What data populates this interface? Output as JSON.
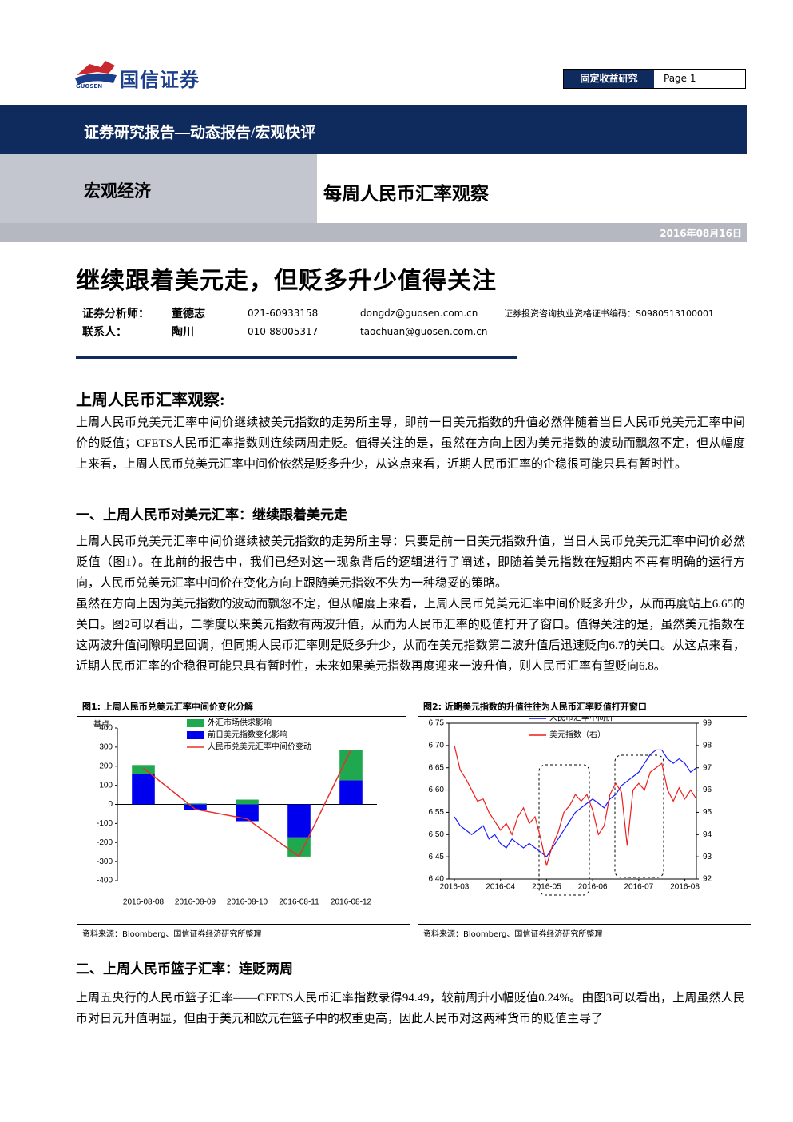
{
  "header": {
    "logo": "国信证券",
    "logo_en": "GUOSEN",
    "tag": "固定收益研究",
    "page": "Page 1"
  },
  "banner": "证券研究报告—动态报告/宏观快评",
  "category": "宏观经济",
  "report_title": "每周人民币汇率观察",
  "date": "2016年08月16日",
  "headline": "继续跟着美元走，但贬多升少值得关注",
  "analysts": [
    {
      "role": "证券分析师：",
      "name": "董德志",
      "phone": "021-60933158",
      "email": "dongdz@guosen.com.cn",
      "cert": "证券投资咨询执业资格证书编码：S0980513100001"
    },
    {
      "role": "联系人：",
      "name": "陶川",
      "phone": "010-88005317",
      "email": "taochuan@guosen.com.cn"
    }
  ],
  "sections": [
    {
      "heading": "上周人民币汇率观察:",
      "paragraphs": [
        "上周人民币兑美元汇率中间价继续被美元指数的走势所主导，即前一日美元指数的升值必然伴随着当日人民币兑美元汇率中间价的贬值；CFETS人民币汇率指数则连续两周走贬。值得关注的是，虽然在方向上因为美元指数的波动而飘忽不定，但从幅度上来看，上周人民币兑美元汇率中间价依然是贬多升少，从这点来看，近期人民币汇率的企稳很可能只具有暂时性。"
      ]
    },
    {
      "heading": "一、上周人民币对美元汇率：继续跟着美元走",
      "paragraphs": [
        "上周人民币兑美元汇率中间价继续被美元指数的走势所主导：只要是前一日美元指数升值，当日人民币兑美元汇率中间价必然贬值（图1）。在此前的报告中，我们已经对这一现象背后的逻辑进行了阐述，即随着美元指数在短期内不再有明确的运行方向，人民币兑美元汇率中间价在变化方向上跟随美元指数不失为一种稳妥的策略。",
        "虽然在方向上因为美元指数的波动而飘忽不定，但从幅度上来看，上周人民币兑美元汇率中间价贬多升少，从而再度站上6.65的关口。图2可以看出，二季度以来美元指数有两波升值，从而为人民币汇率的贬值打开了窗口。值得关注的是，虽然美元指数在这两波升值间隙明显回调，但同期人民币汇率则是贬多升少，从而在美元指数第二波升值后迅速贬向6.7的关口。从这点来看，近期人民币汇率的企稳很可能只具有暂时性，未来如果美元指数再度迎来一波升值，则人民币汇率有望贬向6.8。"
      ]
    },
    {
      "heading": "二、上周人民币篮子汇率：连贬两周",
      "paragraphs": [
        "上周五央行的人民币篮子汇率——CFETS人民币汇率指数录得94.49，较前周升小幅贬值0.24%。由图3可以看出，上周虽然人民币对日元升值明显，但由于美元和欧元在篮子中的权重更高，因此人民币对这两种货币的贬值主导了"
      ]
    }
  ],
  "chart_data": [
    {
      "type": "bar",
      "title": "图1: 上周人民币兑美元汇率中间价变化分解",
      "source": "资料来源：Bloomberg、国信证券经济研究所整理",
      "y_label": "基点",
      "stacked": true,
      "legend": "upper left",
      "categories": [
        "2016-08-08",
        "2016-08-09",
        "2016-08-10",
        "2016-08-11",
        "2016-08-12"
      ],
      "series": [
        {
          "name": "外汇市场供求影响",
          "color": "#1fa84f",
          "values": [
            46,
            5,
            25,
            -101,
            160
          ]
        },
        {
          "name": "前日美元指数变化影响",
          "color": "#0000ee",
          "values": [
            160,
            -30,
            -88,
            -173,
            126
          ]
        },
        {
          "name": "人民币兑美元汇率中间价变动",
          "color": "#e8302a",
          "type": "line",
          "values": [
            190,
            -25,
            -76,
            -274,
            286
          ]
        }
      ],
      "ylim": [
        -400,
        400
      ],
      "yticks": [
        -400,
        -300,
        -200,
        -100,
        0,
        100,
        200,
        300,
        400
      ],
      "grid": false
    },
    {
      "type": "line",
      "title": "图2: 近期美元指数的升值往往为人民币汇率贬值打开窗口",
      "source": "资料来源：Bloomberg、国信证券经济研究所整理",
      "legend": "upper center",
      "categories": [
        "2016-03",
        null,
        null,
        null,
        null,
        null,
        null,
        null,
        "2016-04",
        null,
        null,
        null,
        null,
        null,
        null,
        null,
        "2016-05",
        null,
        null,
        null,
        null,
        null,
        null,
        null,
        "2016-06",
        null,
        null,
        null,
        null,
        null,
        null,
        null,
        "2016-07",
        null,
        null,
        null,
        null,
        null,
        null,
        null,
        "2016-08",
        null,
        null
      ],
      "series": [
        {
          "name": "人民币汇率中间价",
          "color": "#1a1aff",
          "values": [
            6.54,
            6.52,
            6.51,
            6.5,
            6.51,
            6.52,
            6.49,
            6.5,
            6.48,
            6.47,
            6.49,
            6.48,
            6.47,
            6.48,
            6.47,
            6.46,
            6.45,
            6.47,
            6.49,
            6.51,
            6.53,
            6.55,
            6.56,
            6.57,
            6.58,
            6.57,
            6.56,
            6.58,
            6.59,
            6.61,
            6.62,
            6.63,
            6.64,
            6.66,
            6.68,
            6.69,
            6.69,
            6.67,
            6.66,
            6.67,
            6.66,
            6.64,
            6.65
          ]
        },
        {
          "name": "美元指数（右）",
          "color": "#ee1c1c",
          "axis": "y2",
          "values": [
            98.0,
            96.9,
            96.5,
            96.0,
            95.5,
            95.6,
            95.0,
            94.6,
            94.2,
            94.5,
            94.0,
            94.8,
            95.2,
            94.5,
            94.8,
            93.8,
            92.6,
            93.5,
            94.1,
            95.0,
            95.3,
            95.8,
            95.5,
            95.8,
            95.1,
            94.0,
            94.4,
            95.8,
            96.3,
            95.9,
            93.5,
            96.0,
            96.3,
            96.0,
            96.8,
            97.0,
            97.2,
            96.0,
            95.5,
            96.1,
            95.6,
            96.0,
            95.6
          ]
        }
      ],
      "ylim": [
        6.4,
        6.75
      ],
      "yticks": [
        {
          "value": 6.4,
          "label": "6.40"
        },
        6.45,
        {
          "value": 6.5,
          "label": "6.50"
        },
        6.55,
        {
          "value": 6.6,
          "label": "6.60"
        },
        6.65,
        {
          "value": 6.7,
          "label": "6.70"
        },
        6.75
      ],
      "y2lim": [
        92,
        99
      ],
      "y2ticks": [
        92,
        93,
        94,
        95,
        96,
        97,
        98,
        99
      ],
      "grid": false
    }
  ]
}
